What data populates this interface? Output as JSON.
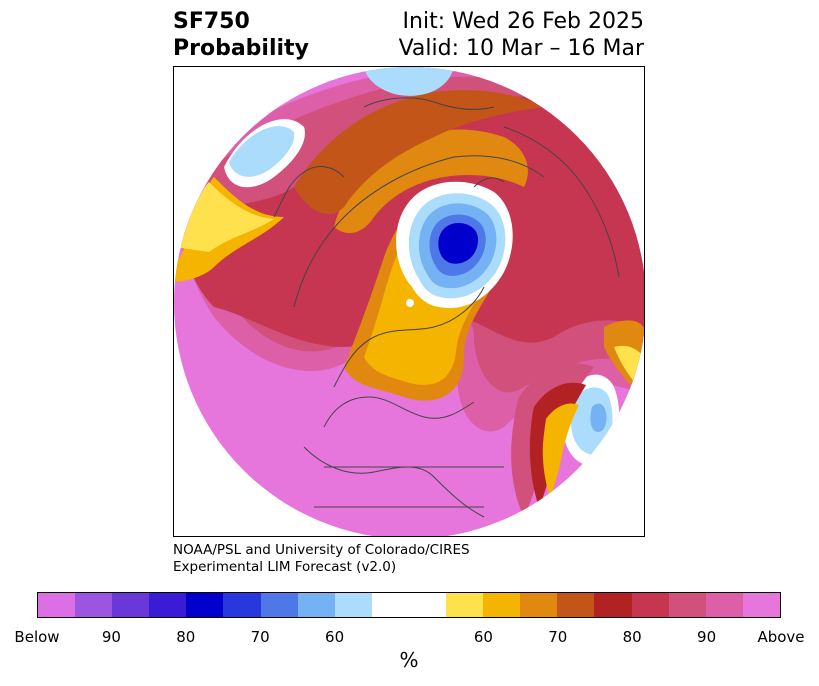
{
  "title": {
    "left_line1": "SF750",
    "left_line2": "Probability",
    "right_line1": "Init: Wed 26 Feb 2025",
    "right_line2": "Valid: 10 Mar – 16 Mar"
  },
  "credit": {
    "line1": "NOAA/PSL and University of Colorado/CIRES",
    "line2": "Experimental LIM Forecast (v2.0)"
  },
  "colorbar": {
    "colors": [
      "#dc6ee6",
      "#9b55e0",
      "#6a38d8",
      "#3a1cd6",
      "#0000cc",
      "#2838dc",
      "#4e78e8",
      "#74b2f4",
      "#acdcfb",
      "#ffffff",
      "#ffffff",
      "#ffe14e",
      "#f4b400",
      "#e08810",
      "#c45518",
      "#b22222",
      "#c63650",
      "#d2507c",
      "#dc5fa8",
      "#e676dc"
    ],
    "ticks": [
      "Below",
      "90",
      "80",
      "70",
      "60",
      "60",
      "70",
      "80",
      "90",
      "Above"
    ],
    "unit": "%"
  },
  "map": {
    "projection": "north-polar-stereographic",
    "palette": {
      "above_far": "#e676dc",
      "above_90": "#dc5fa8",
      "above_85": "#d2507c",
      "above_80": "#c63650",
      "above_75": "#b22222",
      "above_70": "#c45518",
      "above_65": "#e08810",
      "above_60": "#f4b400",
      "above_55": "#ffe14e",
      "neutral": "#ffffff",
      "below_55": "#acdcfb",
      "below_60": "#74b2f4",
      "below_65": "#4e78e8",
      "below_70": "#2838dc",
      "below_80": "#0000cc",
      "below_85": "#3a1cd6"
    },
    "coastline_color": "#444444"
  }
}
